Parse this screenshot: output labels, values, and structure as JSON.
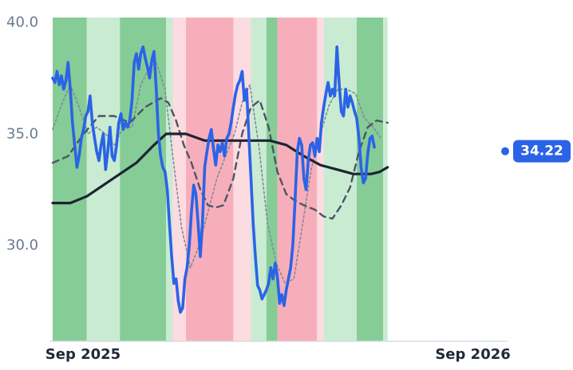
{
  "chart_data": {
    "type": "line",
    "title": "",
    "xlabel": "",
    "ylabel": "",
    "ylim": [
      25.7,
      40.0
    ],
    "x_range": [
      "2025-08-20",
      "2026-10-04"
    ],
    "y_ticks": [
      {
        "value": 30,
        "label": "30.0"
      },
      {
        "value": 35,
        "label": "35.0"
      },
      {
        "value": 40,
        "label": "40.0"
      }
    ],
    "x_ticks": [
      {
        "date": "2025-09-20",
        "label": "Sep 2025",
        "anchor": "start"
      },
      {
        "date": "2026-09-15",
        "label": "Sep 2026",
        "anchor": "end"
      }
    ],
    "last_value": {
      "value": 34.22,
      "label": "34.22"
    },
    "colors": {
      "price": "#2b63e6",
      "long_ma": "#1e2433",
      "mid_ma": "#4b5566",
      "short_ma": "#7f8a99",
      "badge": "#2b63e6",
      "green_strong": "#86cc96",
      "green_light": "#c9ebd2",
      "red_strong": "#f7aebb",
      "red_light": "#fcdbe1"
    },
    "regimes": [
      {
        "start": "2025-08-20",
        "end": "2025-09-20",
        "kind": "green_strong"
      },
      {
        "start": "2025-09-20",
        "end": "2025-10-20",
        "kind": "green_light"
      },
      {
        "start": "2025-10-20",
        "end": "2025-12-01",
        "kind": "green_strong"
      },
      {
        "start": "2025-12-01",
        "end": "2025-12-07",
        "kind": "green_light"
      },
      {
        "start": "2025-12-07",
        "end": "2025-12-19",
        "kind": "red_light"
      },
      {
        "start": "2025-12-19",
        "end": "2026-01-31",
        "kind": "red_strong"
      },
      {
        "start": "2026-01-31",
        "end": "2026-02-16",
        "kind": "red_light"
      },
      {
        "start": "2026-02-16",
        "end": "2026-03-02",
        "kind": "green_light"
      },
      {
        "start": "2026-03-02",
        "end": "2026-03-12",
        "kind": "green_strong"
      },
      {
        "start": "2026-03-12",
        "end": "2026-04-17",
        "kind": "red_strong"
      },
      {
        "start": "2026-04-17",
        "end": "2026-04-23",
        "kind": "red_light"
      },
      {
        "start": "2026-04-23",
        "end": "2026-05-23",
        "kind": "green_light"
      },
      {
        "start": "2026-05-23",
        "end": "2026-06-16",
        "kind": "green_strong"
      },
      {
        "start": "2026-06-16",
        "end": "2026-06-20",
        "kind": "green_light"
      }
    ],
    "series": [
      {
        "key": "price",
        "points": [
          [
            "2025-08-20",
            37.5
          ],
          [
            "2025-08-22",
            37.3
          ],
          [
            "2025-08-24",
            37.8
          ],
          [
            "2025-08-26",
            37.2
          ],
          [
            "2025-08-28",
            37.6
          ],
          [
            "2025-08-30",
            37.0
          ],
          [
            "2025-09-01",
            37.4
          ],
          [
            "2025-09-03",
            38.2
          ],
          [
            "2025-09-05",
            37.0
          ],
          [
            "2025-09-07",
            35.5
          ],
          [
            "2025-09-09",
            34.5
          ],
          [
            "2025-09-11",
            33.5
          ],
          [
            "2025-09-13",
            34.0
          ],
          [
            "2025-09-15",
            34.8
          ],
          [
            "2025-09-17",
            35.2
          ],
          [
            "2025-09-19",
            35.8
          ],
          [
            "2025-09-21",
            36.0
          ],
          [
            "2025-09-23",
            36.7
          ],
          [
            "2025-09-25",
            35.5
          ],
          [
            "2025-09-27",
            34.8
          ],
          [
            "2025-09-29",
            34.2
          ],
          [
            "2025-10-01",
            33.8
          ],
          [
            "2025-10-03",
            34.5
          ],
          [
            "2025-10-05",
            35.0
          ],
          [
            "2025-10-07",
            33.4
          ],
          [
            "2025-10-09",
            34.2
          ],
          [
            "2025-10-11",
            35.3
          ],
          [
            "2025-10-13",
            34.0
          ],
          [
            "2025-10-15",
            33.8
          ],
          [
            "2025-10-17",
            34.5
          ],
          [
            "2025-10-19",
            35.5
          ],
          [
            "2025-10-21",
            35.9
          ],
          [
            "2025-10-23",
            35.2
          ],
          [
            "2025-10-25",
            35.5
          ],
          [
            "2025-10-27",
            35.3
          ],
          [
            "2025-10-29",
            35.6
          ],
          [
            "2025-10-31",
            36.5
          ],
          [
            "2025-11-02",
            38.2
          ],
          [
            "2025-11-04",
            38.6
          ],
          [
            "2025-11-06",
            37.9
          ],
          [
            "2025-11-08",
            38.6
          ],
          [
            "2025-11-10",
            38.9
          ],
          [
            "2025-11-12",
            38.4
          ],
          [
            "2025-11-14",
            38.0
          ],
          [
            "2025-11-16",
            37.5
          ],
          [
            "2025-11-18",
            38.3
          ],
          [
            "2025-11-20",
            38.7
          ],
          [
            "2025-11-22",
            37.0
          ],
          [
            "2025-11-24",
            35.0
          ],
          [
            "2025-11-26",
            34.0
          ],
          [
            "2025-11-28",
            33.5
          ],
          [
            "2025-11-30",
            33.3
          ],
          [
            "2025-12-02",
            32.5
          ],
          [
            "2025-12-04",
            31.0
          ],
          [
            "2025-12-06",
            29.5
          ],
          [
            "2025-12-08",
            28.3
          ],
          [
            "2025-12-10",
            28.5
          ],
          [
            "2025-12-12",
            27.5
          ],
          [
            "2025-12-14",
            27.0
          ],
          [
            "2025-12-16",
            27.2
          ],
          [
            "2025-12-18",
            28.5
          ],
          [
            "2025-12-20",
            29.0
          ],
          [
            "2025-12-22",
            30.0
          ],
          [
            "2025-12-24",
            31.5
          ],
          [
            "2025-12-26",
            32.7
          ],
          [
            "2025-12-28",
            32.3
          ],
          [
            "2025-12-30",
            31.0
          ],
          [
            "2026-01-01",
            29.5
          ],
          [
            "2026-01-03",
            31.0
          ],
          [
            "2026-01-05",
            33.5
          ],
          [
            "2026-01-07",
            34.2
          ],
          [
            "2026-01-09",
            34.8
          ],
          [
            "2026-01-11",
            35.2
          ],
          [
            "2026-01-13",
            34.3
          ],
          [
            "2026-01-15",
            33.6
          ],
          [
            "2026-01-17",
            34.5
          ],
          [
            "2026-01-19",
            34.2
          ],
          [
            "2026-01-21",
            34.6
          ],
          [
            "2026-01-23",
            34.0
          ],
          [
            "2026-01-25",
            34.8
          ],
          [
            "2026-01-27",
            35.0
          ],
          [
            "2026-01-29",
            35.5
          ],
          [
            "2026-01-31",
            36.2
          ],
          [
            "2026-02-02",
            36.8
          ],
          [
            "2026-02-04",
            37.2
          ],
          [
            "2026-02-06",
            37.4
          ],
          [
            "2026-02-08",
            37.8
          ],
          [
            "2026-02-10",
            36.5
          ],
          [
            "2026-02-12",
            37.0
          ],
          [
            "2026-02-14",
            35.0
          ],
          [
            "2026-02-16",
            33.0
          ],
          [
            "2026-02-18",
            31.0
          ],
          [
            "2026-02-20",
            29.5
          ],
          [
            "2026-02-22",
            28.2
          ],
          [
            "2026-02-24",
            28.0
          ],
          [
            "2026-02-26",
            27.6
          ],
          [
            "2026-02-28",
            27.8
          ],
          [
            "2026-03-02",
            28.0
          ],
          [
            "2026-03-04",
            28.3
          ],
          [
            "2026-03-06",
            29.0
          ],
          [
            "2026-03-08",
            28.5
          ],
          [
            "2026-03-10",
            29.2
          ],
          [
            "2026-03-12",
            28.6
          ],
          [
            "2026-03-14",
            27.4
          ],
          [
            "2026-03-16",
            27.8
          ],
          [
            "2026-03-18",
            27.3
          ],
          [
            "2026-03-20",
            28.0
          ],
          [
            "2026-03-22",
            28.5
          ],
          [
            "2026-03-24",
            29.0
          ],
          [
            "2026-03-26",
            30.0
          ],
          [
            "2026-03-28",
            32.0
          ],
          [
            "2026-03-30",
            34.2
          ],
          [
            "2026-04-01",
            34.8
          ],
          [
            "2026-04-03",
            34.5
          ],
          [
            "2026-04-05",
            33.0
          ],
          [
            "2026-04-07",
            32.5
          ],
          [
            "2026-04-09",
            33.8
          ],
          [
            "2026-04-11",
            34.5
          ],
          [
            "2026-04-13",
            34.6
          ],
          [
            "2026-04-15",
            34.0
          ],
          [
            "2026-04-17",
            34.8
          ],
          [
            "2026-04-19",
            34.2
          ],
          [
            "2026-04-21",
            35.5
          ],
          [
            "2026-04-23",
            36.2
          ],
          [
            "2026-04-25",
            36.8
          ],
          [
            "2026-04-27",
            37.3
          ],
          [
            "2026-04-29",
            36.7
          ],
          [
            "2026-05-01",
            37.0
          ],
          [
            "2026-05-03",
            36.7
          ],
          [
            "2026-05-05",
            38.9
          ],
          [
            "2026-05-07",
            37.3
          ],
          [
            "2026-05-09",
            36.0
          ],
          [
            "2026-05-11",
            35.8
          ],
          [
            "2026-05-13",
            37.0
          ],
          [
            "2026-05-15",
            36.2
          ],
          [
            "2026-05-17",
            36.7
          ],
          [
            "2026-05-19",
            36.4
          ],
          [
            "2026-05-21",
            36.0
          ],
          [
            "2026-05-23",
            35.7
          ],
          [
            "2026-05-25",
            34.8
          ],
          [
            "2026-05-27",
            33.5
          ],
          [
            "2026-05-29",
            32.8
          ],
          [
            "2026-05-31",
            33.0
          ],
          [
            "2026-06-02",
            34.1
          ],
          [
            "2026-06-04",
            34.8
          ],
          [
            "2026-06-06",
            34.9
          ],
          [
            "2026-06-08",
            34.4
          ]
        ]
      },
      {
        "key": "long_ma",
        "points": [
          [
            "2025-08-20",
            31.9
          ],
          [
            "2025-09-05",
            31.9
          ],
          [
            "2025-09-20",
            32.2
          ],
          [
            "2025-10-05",
            32.7
          ],
          [
            "2025-10-20",
            33.2
          ],
          [
            "2025-11-04",
            33.7
          ],
          [
            "2025-11-20",
            34.5
          ],
          [
            "2025-12-01",
            35.0
          ],
          [
            "2025-12-19",
            35.0
          ],
          [
            "2026-01-05",
            34.7
          ],
          [
            "2026-01-20",
            34.7
          ],
          [
            "2026-02-05",
            34.7
          ],
          [
            "2026-02-20",
            34.7
          ],
          [
            "2026-03-05",
            34.7
          ],
          [
            "2026-03-20",
            34.5
          ],
          [
            "2026-04-05",
            34.0
          ],
          [
            "2026-04-20",
            33.6
          ],
          [
            "2026-05-05",
            33.4
          ],
          [
            "2026-05-20",
            33.2
          ],
          [
            "2026-06-05",
            33.2
          ],
          [
            "2026-06-13",
            33.3
          ],
          [
            "2026-06-20",
            33.5
          ]
        ]
      },
      {
        "key": "mid_ma",
        "points": [
          [
            "2025-08-20",
            33.7
          ],
          [
            "2025-09-03",
            34.0
          ],
          [
            "2025-09-17",
            35.0
          ],
          [
            "2025-10-01",
            35.8
          ],
          [
            "2025-10-15",
            35.8
          ],
          [
            "2025-10-29",
            35.5
          ],
          [
            "2025-11-12",
            36.2
          ],
          [
            "2025-11-26",
            36.6
          ],
          [
            "2025-12-03",
            36.4
          ],
          [
            "2025-12-10",
            35.6
          ],
          [
            "2025-12-17",
            34.5
          ],
          [
            "2025-12-24",
            33.7
          ],
          [
            "2026-01-01",
            32.5
          ],
          [
            "2026-01-08",
            31.8
          ],
          [
            "2026-01-15",
            31.7
          ],
          [
            "2026-01-22",
            31.8
          ],
          [
            "2026-01-31",
            33.0
          ],
          [
            "2026-02-08",
            35.0
          ],
          [
            "2026-02-16",
            36.2
          ],
          [
            "2026-02-24",
            36.5
          ],
          [
            "2026-03-04",
            35.3
          ],
          [
            "2026-03-12",
            33.3
          ],
          [
            "2026-03-20",
            32.3
          ],
          [
            "2026-03-28",
            32.0
          ],
          [
            "2026-04-05",
            31.8
          ],
          [
            "2026-04-15",
            31.6
          ],
          [
            "2026-04-23",
            31.3
          ],
          [
            "2026-05-01",
            31.2
          ],
          [
            "2026-05-09",
            31.8
          ],
          [
            "2026-05-17",
            32.6
          ],
          [
            "2026-05-25",
            34.2
          ],
          [
            "2026-06-02",
            35.3
          ],
          [
            "2026-06-10",
            35.6
          ],
          [
            "2026-06-20",
            35.5
          ]
        ]
      },
      {
        "key": "short_ma",
        "points": [
          [
            "2025-08-20",
            35.2
          ],
          [
            "2025-08-28",
            36.3
          ],
          [
            "2025-09-05",
            37.2
          ],
          [
            "2025-09-13",
            36.2
          ],
          [
            "2025-09-21",
            35.0
          ],
          [
            "2025-09-29",
            35.3
          ],
          [
            "2025-10-07",
            35.0
          ],
          [
            "2025-10-15",
            34.5
          ],
          [
            "2025-10-23",
            35.3
          ],
          [
            "2025-10-31",
            35.3
          ],
          [
            "2025-11-08",
            37.2
          ],
          [
            "2025-11-16",
            38.0
          ],
          [
            "2025-11-22",
            38.2
          ],
          [
            "2025-11-30",
            37.0
          ],
          [
            "2025-12-07",
            34.0
          ],
          [
            "2025-12-15",
            30.8
          ],
          [
            "2025-12-23",
            29.0
          ],
          [
            "2025-12-31",
            30.0
          ],
          [
            "2026-01-08",
            31.5
          ],
          [
            "2026-01-16",
            33.0
          ],
          [
            "2026-01-24",
            34.0
          ],
          [
            "2026-02-01",
            35.0
          ],
          [
            "2026-02-09",
            36.6
          ],
          [
            "2026-02-15",
            37.2
          ],
          [
            "2026-02-23",
            34.5
          ],
          [
            "2026-03-03",
            31.0
          ],
          [
            "2026-03-11",
            29.2
          ],
          [
            "2026-03-19",
            28.3
          ],
          [
            "2026-03-27",
            28.5
          ],
          [
            "2026-04-04",
            31.0
          ],
          [
            "2026-04-12",
            33.5
          ],
          [
            "2026-04-20",
            35.0
          ],
          [
            "2026-04-28",
            36.3
          ],
          [
            "2026-05-06",
            37.0
          ],
          [
            "2026-05-14",
            37.0
          ],
          [
            "2026-05-22",
            36.8
          ],
          [
            "2026-05-30",
            35.7
          ],
          [
            "2026-06-07",
            35.3
          ],
          [
            "2026-06-14",
            34.8
          ]
        ]
      }
    ]
  }
}
